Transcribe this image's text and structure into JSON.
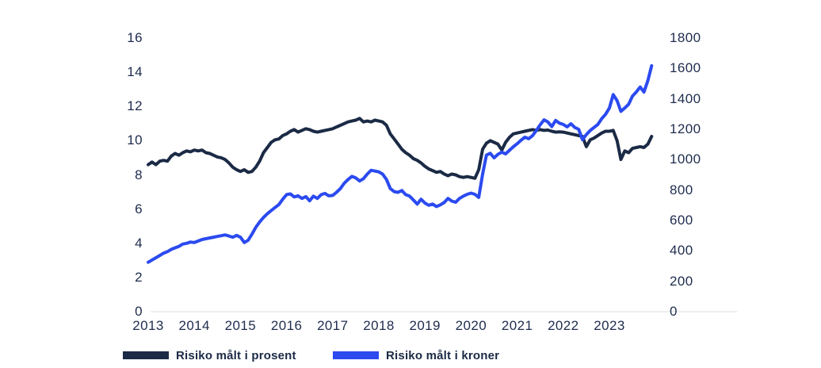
{
  "colors": {
    "navy": "#1b2a45",
    "blue": "#2b4af0",
    "axis_text": "#1e2c4e",
    "axis_line": "#dcdcdc",
    "background": "#ffffff"
  },
  "legend": {
    "prosent_label": "Risiko målt i prosent",
    "kroner_label": "Risiko målt i kroner"
  },
  "chart_data": {
    "type": "line",
    "title": "",
    "grid": false,
    "legend_position": "bottom",
    "x_unit": "monthly, 2013-01 to 2023-12",
    "x_tick_labels": [
      "2013",
      "2014",
      "2015",
      "2016",
      "2017",
      "2018",
      "2019",
      "2020",
      "2021",
      "2022",
      "2023"
    ],
    "left_axis": {
      "range": [
        0,
        16
      ],
      "ticks": [
        0,
        2,
        4,
        6,
        8,
        10,
        12,
        14,
        16
      ]
    },
    "right_axis": {
      "range": [
        0,
        1800
      ],
      "ticks": [
        0,
        200,
        400,
        600,
        800,
        1000,
        1200,
        1400,
        1600,
        1800
      ]
    },
    "series": [
      {
        "name": "Risiko målt i prosent",
        "axis": "left",
        "color": "#1b2a45",
        "values": [
          8.6,
          8.75,
          8.6,
          8.8,
          8.85,
          8.8,
          9.1,
          9.25,
          9.15,
          9.3,
          9.4,
          9.35,
          9.45,
          9.4,
          9.45,
          9.3,
          9.25,
          9.15,
          9.05,
          9.0,
          8.9,
          8.7,
          8.45,
          8.3,
          8.2,
          8.3,
          8.15,
          8.2,
          8.45,
          8.8,
          9.3,
          9.6,
          9.9,
          10.05,
          10.1,
          10.3,
          10.4,
          10.55,
          10.65,
          10.5,
          10.6,
          10.7,
          10.65,
          10.55,
          10.5,
          10.55,
          10.6,
          10.65,
          10.7,
          10.8,
          10.9,
          11.0,
          11.1,
          11.15,
          11.2,
          11.3,
          11.1,
          11.15,
          11.1,
          11.2,
          11.15,
          11.1,
          10.9,
          10.4,
          10.1,
          9.8,
          9.5,
          9.3,
          9.15,
          8.95,
          8.85,
          8.7,
          8.5,
          8.35,
          8.25,
          8.15,
          8.2,
          8.05,
          7.95,
          8.05,
          8.0,
          7.9,
          7.85,
          7.9,
          7.85,
          7.8,
          8.3,
          9.5,
          9.85,
          10.0,
          9.9,
          9.8,
          9.45,
          9.9,
          10.2,
          10.4,
          10.45,
          10.5,
          10.55,
          10.6,
          10.65,
          10.6,
          10.65,
          10.6,
          10.62,
          10.55,
          10.5,
          10.52,
          10.5,
          10.45,
          10.4,
          10.35,
          10.3,
          10.25,
          9.65,
          10.05,
          10.15,
          10.3,
          10.45,
          10.55,
          10.55,
          10.6,
          10.0,
          8.9,
          9.4,
          9.3,
          9.55,
          9.6,
          9.65,
          9.6,
          9.8,
          10.25
        ]
      },
      {
        "name": "Risiko målt i kroner",
        "axis": "right",
        "color": "#2b4af0",
        "values": [
          325,
          340,
          355,
          370,
          385,
          395,
          410,
          420,
          430,
          445,
          450,
          458,
          455,
          465,
          475,
          480,
          485,
          490,
          495,
          500,
          505,
          498,
          490,
          502,
          490,
          455,
          470,
          510,
          555,
          590,
          620,
          645,
          665,
          685,
          705,
          740,
          770,
          775,
          755,
          762,
          745,
          757,
          730,
          760,
          745,
          770,
          778,
          762,
          765,
          785,
          810,
          845,
          870,
          890,
          880,
          860,
          875,
          905,
          930,
          925,
          920,
          905,
          870,
          810,
          790,
          785,
          797,
          770,
          760,
          735,
          708,
          740,
          715,
          700,
          708,
          692,
          703,
          718,
          745,
          728,
          720,
          745,
          760,
          772,
          780,
          772,
          752,
          905,
          1030,
          1042,
          1012,
          1035,
          1050,
          1038,
          1062,
          1085,
          1105,
          1128,
          1148,
          1138,
          1158,
          1192,
          1230,
          1262,
          1248,
          1218,
          1258,
          1240,
          1232,
          1216,
          1236,
          1212,
          1200,
          1132,
          1165,
          1192,
          1212,
          1232,
          1270,
          1298,
          1340,
          1428,
          1388,
          1318,
          1340,
          1365,
          1418,
          1445,
          1478,
          1445,
          1520,
          1618
        ]
      }
    ]
  }
}
